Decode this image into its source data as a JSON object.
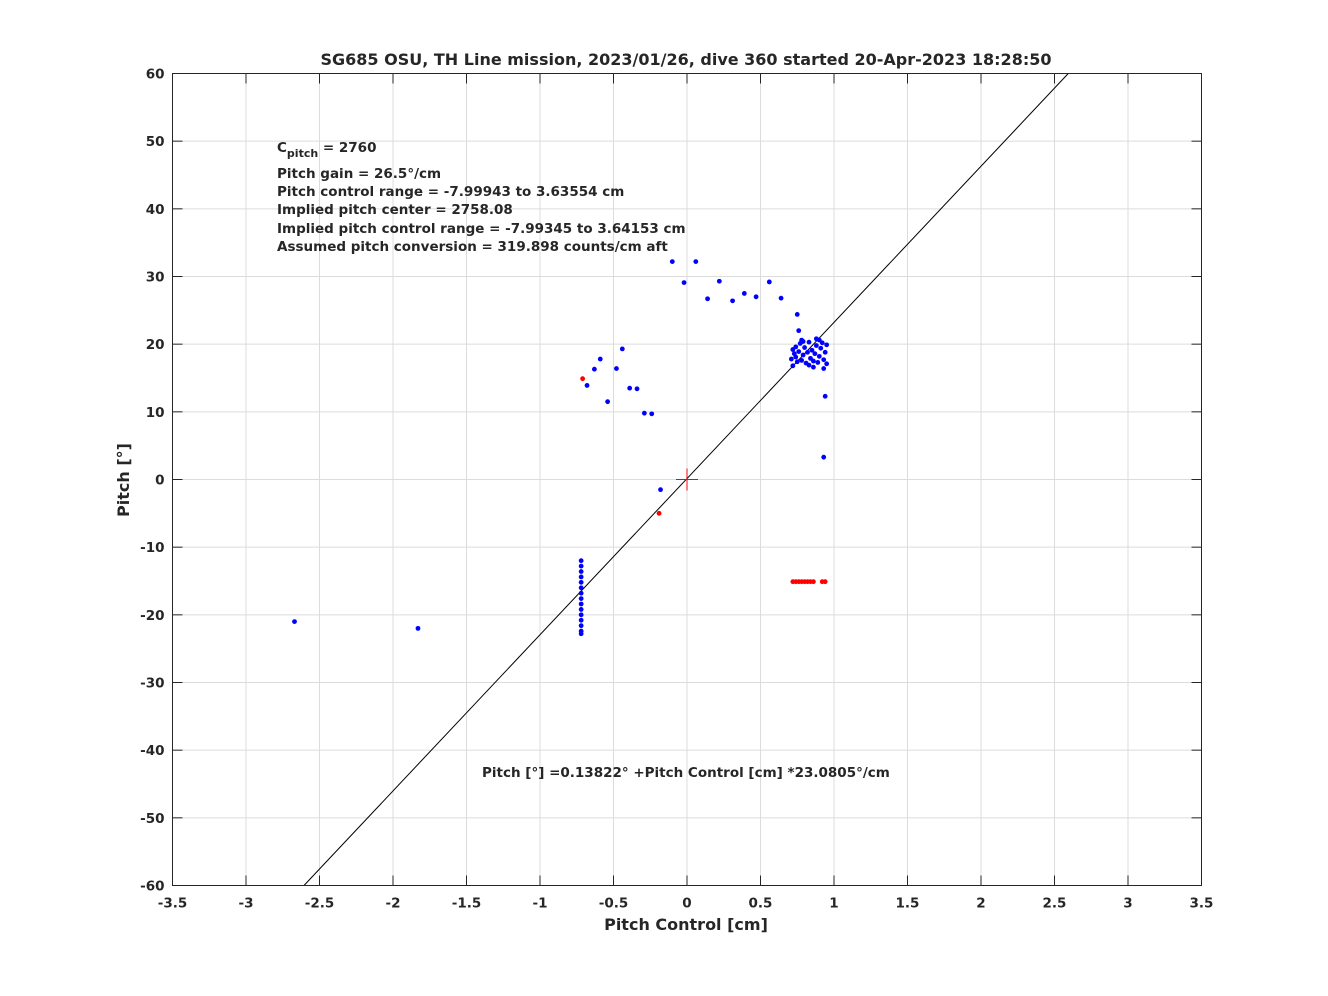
{
  "chart_data": {
    "type": "scatter",
    "title": "SG685 OSU, TH Line mission, 2023/01/26, dive 360 started 20-Apr-2023 18:28:50",
    "xlabel": "Pitch Control [cm]",
    "ylabel": "Pitch [°]",
    "xlim": [
      -3.5,
      3.5
    ],
    "ylim": [
      -60,
      60
    ],
    "xticks": [
      -3.5,
      -3,
      -2.5,
      -2,
      -1.5,
      -1,
      -0.5,
      0,
      0.5,
      1,
      1.5,
      2,
      2.5,
      3,
      3.5
    ],
    "yticks": [
      -60,
      -50,
      -40,
      -30,
      -20,
      -10,
      0,
      10,
      20,
      30,
      40,
      50,
      60
    ],
    "xtick_labels": [
      "-3.5",
      "-3",
      "-2.5",
      "-2",
      "-1.5",
      "-1",
      "-0.5",
      "0",
      "0.5",
      "1",
      "1.5",
      "2",
      "2.5",
      "3",
      "3.5"
    ],
    "ytick_labels": [
      "-60",
      "-50",
      "-40",
      "-30",
      "-20",
      "-10",
      "0",
      "10",
      "20",
      "30",
      "40",
      "50",
      "60"
    ],
    "grid": true,
    "info_lines": [
      {
        "main": "C",
        "sub": "pitch",
        "rest": " = 2760"
      },
      {
        "main": "Pitch gain = 26.5°/cm"
      },
      {
        "main": "Pitch control range = -7.99943 to 3.63554 cm"
      },
      {
        "main": "Implied pitch center = 2758.08"
      },
      {
        "main": "Implied pitch control range = -7.99345 to 3.64153 cm"
      },
      {
        "main": "Assumed pitch conversion = 319.898 counts/cm aft"
      }
    ],
    "fit_label": "Pitch [°] =0.13822° +Pitch Control [cm] *23.0805°/cm",
    "fit_line": {
      "intercept": 0.13822,
      "slope": 23.0805,
      "color": "#000000"
    },
    "center_marker": {
      "x": 0,
      "y": 0,
      "color": "#ff0000"
    },
    "series": [
      {
        "color": "#0000ff",
        "points": [
          [
            -2.67,
            -21
          ],
          [
            -1.83,
            -22
          ],
          [
            -0.68,
            13.9
          ],
          [
            -0.63,
            16.3
          ],
          [
            -0.59,
            17.8
          ],
          [
            -0.54,
            11.5
          ],
          [
            -0.48,
            16.4
          ],
          [
            -0.44,
            19.3
          ],
          [
            -0.39,
            13.5
          ],
          [
            -0.34,
            13.4
          ],
          [
            -0.29,
            9.8
          ],
          [
            -0.24,
            9.7
          ],
          [
            -0.18,
            -1.5
          ],
          [
            -0.1,
            32.2
          ],
          [
            -0.02,
            29.1
          ],
          [
            0.06,
            32.2
          ],
          [
            0.14,
            26.7
          ],
          [
            0.22,
            29.3
          ],
          [
            0.31,
            26.4
          ],
          [
            0.39,
            27.5
          ],
          [
            0.47,
            27
          ],
          [
            0.56,
            29.2
          ],
          [
            0.64,
            26.8
          ],
          [
            0.75,
            24.4
          ],
          [
            0.76,
            22
          ],
          [
            0.94,
            12.3
          ],
          [
            0.93,
            3.3
          ],
          [
            0.86,
            16.6
          ],
          [
            0.93,
            16.4
          ],
          [
            0.72,
            16.8
          ],
          [
            0.88,
            20.8
          ],
          [
            0.78,
            20.6
          ],
          [
            -0.72,
            -12
          ],
          [
            -0.72,
            -12.8
          ],
          [
            -0.72,
            -13.6
          ],
          [
            -0.72,
            -14.4
          ],
          [
            -0.72,
            -15.2
          ],
          [
            -0.72,
            -16
          ],
          [
            -0.72,
            -16.8
          ],
          [
            -0.72,
            -17.6
          ],
          [
            -0.72,
            -18.4
          ],
          [
            -0.72,
            -19.2
          ],
          [
            -0.72,
            -20
          ],
          [
            -0.72,
            -20.8
          ],
          [
            -0.72,
            -21.6
          ],
          [
            -0.72,
            -22.4
          ],
          [
            -0.72,
            -22.8
          ],
          [
            0.71,
            17.8
          ],
          [
            0.73,
            18.6
          ],
          [
            0.74,
            19.6
          ],
          [
            0.75,
            17.4
          ],
          [
            0.76,
            18.9
          ],
          [
            0.77,
            20.1
          ],
          [
            0.78,
            17.6
          ],
          [
            0.79,
            18.4
          ],
          [
            0.8,
            19.5
          ],
          [
            0.81,
            17.2
          ],
          [
            0.82,
            18.8
          ],
          [
            0.83,
            20.3
          ],
          [
            0.84,
            17.9
          ],
          [
            0.85,
            19.1
          ],
          [
            0.86,
            17.5
          ],
          [
            0.87,
            18.6
          ],
          [
            0.88,
            19.8
          ],
          [
            0.89,
            17.3
          ],
          [
            0.9,
            18.2
          ],
          [
            0.91,
            19.4
          ],
          [
            0.92,
            20.2
          ],
          [
            0.93,
            17.7
          ],
          [
            0.94,
            18.8
          ],
          [
            0.95,
            19.9
          ],
          [
            0.72,
            19.2
          ],
          [
            0.79,
            20.4
          ],
          [
            0.83,
            16.9
          ],
          [
            0.9,
            20.6
          ],
          [
            0.95,
            17.1
          ],
          [
            0.74,
            18.1
          ]
        ]
      },
      {
        "color": "#ff0000",
        "points": [
          [
            -0.71,
            14.9
          ],
          [
            -0.19,
            -5
          ],
          [
            0.72,
            -15.1
          ],
          [
            0.74,
            -15.1
          ],
          [
            0.76,
            -15.1
          ],
          [
            0.78,
            -15.1
          ],
          [
            0.8,
            -15.1
          ],
          [
            0.82,
            -15.1
          ],
          [
            0.84,
            -15.1
          ],
          [
            0.86,
            -15.1
          ],
          [
            0.92,
            -15.1
          ],
          [
            0.94,
            -15.1
          ]
        ]
      }
    ]
  }
}
